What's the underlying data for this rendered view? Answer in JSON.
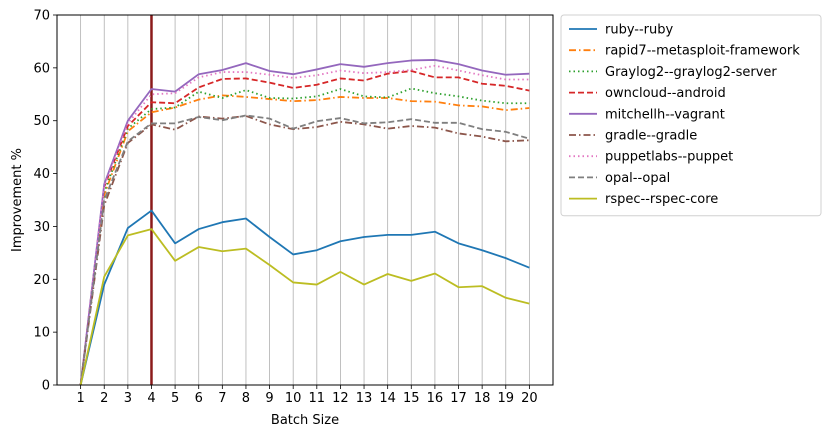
{
  "chart_data": {
    "type": "line",
    "xlabel": "Batch Size",
    "ylabel": "Improvement %",
    "ylim": [
      0,
      70
    ],
    "xlim": [
      0,
      21
    ],
    "x": [
      1,
      2,
      3,
      4,
      5,
      6,
      7,
      8,
      9,
      10,
      11,
      12,
      13,
      14,
      15,
      16,
      17,
      18,
      19,
      20
    ],
    "yticks": [
      0,
      10,
      20,
      30,
      40,
      50,
      60,
      70
    ],
    "grid": "vertical lines at each batch size",
    "highlight_x": 4,
    "highlight_color": "#8b1a1a",
    "legend_position": "outside upper right",
    "series": [
      {
        "name": "ruby--ruby",
        "color": "#1f77b4",
        "dash": "solid",
        "values": [
          0,
          19,
          29.7,
          33,
          26.8,
          29.5,
          30.8,
          31.5,
          28,
          24.7,
          25.5,
          27.2,
          28,
          28.4,
          28.4,
          29,
          26.8,
          25.5,
          24,
          22.2
        ]
      },
      {
        "name": "rapid7--metasploit-framework",
        "color": "#ff7f0e",
        "dash": "dashdot",
        "values": [
          0,
          36,
          48,
          51.6,
          52.5,
          54,
          54.8,
          54.5,
          54.1,
          53.7,
          53.9,
          54.5,
          54.3,
          54.3,
          53.7,
          53.6,
          52.9,
          52.7,
          52,
          52.4
        ]
      },
      {
        "name": "Graylog2--graylog2-server",
        "color": "#2ca02c",
        "dash": "dotted",
        "values": [
          0,
          36.5,
          48.5,
          52.2,
          52.5,
          55.5,
          54.3,
          55.8,
          54.3,
          54.2,
          54.6,
          56,
          54.6,
          54.4,
          56.1,
          55.2,
          54.6,
          53.8,
          53.3,
          53.3
        ]
      },
      {
        "name": "owncloud--android",
        "color": "#d62728",
        "dash": "dashed",
        "values": [
          0,
          37.5,
          49,
          53.5,
          53.3,
          56.3,
          57.9,
          58,
          57.2,
          56.2,
          56.8,
          58,
          57.6,
          58.9,
          59.4,
          58.2,
          58.2,
          57,
          56.6,
          55.7
        ]
      },
      {
        "name": "mitchellh--vagrant",
        "color": "#9467bd",
        "dash": "solid",
        "values": [
          0,
          38,
          50,
          56,
          55.5,
          58.8,
          59.6,
          60.9,
          59.4,
          58.8,
          59.7,
          60.7,
          60.2,
          60.9,
          61.4,
          61.5,
          60.7,
          59.5,
          58.7,
          58.9
        ]
      },
      {
        "name": "gradle--gradle",
        "color": "#8c564b",
        "dash": "dashdot",
        "values": [
          0,
          34,
          45.8,
          49.3,
          48.3,
          50.8,
          50.4,
          50.9,
          49.3,
          48.4,
          48.8,
          49.8,
          49.3,
          48.5,
          49,
          48.7,
          47.6,
          47,
          46.1,
          46.3
        ]
      },
      {
        "name": "puppetlabs--puppet",
        "color": "#e377c2",
        "dash": "dotted",
        "values": [
          0,
          37.6,
          49.5,
          55,
          55.2,
          58.2,
          59.2,
          59.2,
          58.7,
          58.1,
          58.6,
          59.5,
          59,
          59.2,
          59.6,
          60.4,
          59.5,
          58.6,
          57.8,
          57.8
        ]
      },
      {
        "name": "opal--opal",
        "color": "#7f7f7f",
        "dash": "dashed",
        "values": [
          0,
          35,
          46.1,
          49.5,
          49.5,
          50.7,
          50.1,
          51,
          50.4,
          48.5,
          49.9,
          50.5,
          49.5,
          49.7,
          50.3,
          49.6,
          49.6,
          48.4,
          47.9,
          46.6
        ]
      },
      {
        "name": "rspec--rspec-core",
        "color": "#bcbd22",
        "dash": "solid",
        "values": [
          0,
          20.5,
          28.3,
          29.5,
          23.5,
          26.1,
          25.3,
          25.8,
          22.7,
          19.4,
          19,
          21.4,
          19,
          21,
          19.7,
          21.1,
          18.5,
          18.7,
          16.5,
          15.4
        ]
      }
    ]
  }
}
